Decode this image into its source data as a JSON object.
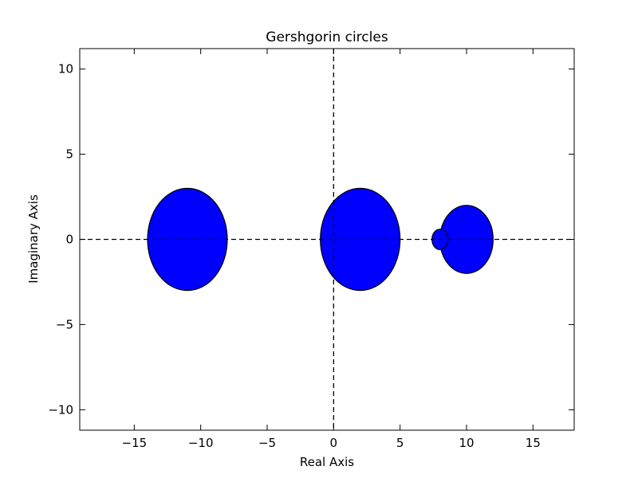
{
  "chart_data": {
    "type": "scatter",
    "title": "Gershgorin circles",
    "xlabel": "Real Axis",
    "ylabel": "Imaginary Axis",
    "xlim": [
      -19.1,
      18.1
    ],
    "ylim": [
      -11.2,
      11.2
    ],
    "xticks": [
      {
        "value": -15,
        "label": "−15"
      },
      {
        "value": -10,
        "label": "−10"
      },
      {
        "value": -5,
        "label": "−5"
      },
      {
        "value": 0,
        "label": "0"
      },
      {
        "value": 5,
        "label": "5"
      },
      {
        "value": 10,
        "label": "10"
      },
      {
        "value": 15,
        "label": "15"
      }
    ],
    "yticks": [
      {
        "value": 10,
        "label": "10"
      },
      {
        "value": 5,
        "label": "5"
      },
      {
        "value": 0,
        "label": "0"
      },
      {
        "value": -5,
        "label": "−5"
      },
      {
        "value": -10,
        "label": "−10"
      }
    ],
    "circles": [
      {
        "center": [
          -11,
          0
        ],
        "radius": 3
      },
      {
        "center": [
          2,
          0
        ],
        "radius": 3
      },
      {
        "center": [
          10,
          0
        ],
        "radius": 2
      },
      {
        "center": [
          8,
          0
        ],
        "radius": 0.6
      }
    ],
    "reference_lines": {
      "x": 0,
      "y": 0,
      "style": "dashed"
    },
    "fill_color": "#0000ff",
    "edge_color": "#000000",
    "grid": false,
    "legend": "none"
  }
}
